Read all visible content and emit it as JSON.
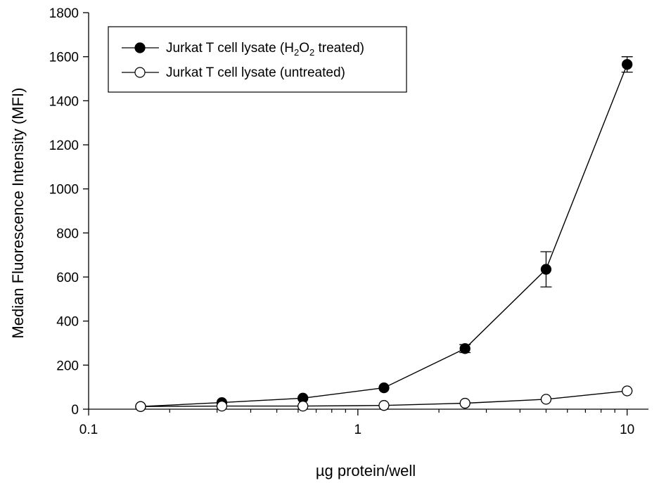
{
  "chart_data": {
    "type": "scatter",
    "xlabel": "µg protein/well",
    "ylabel": "Median Fluorescence Intensity (MFI)",
    "xscale": "log",
    "xlim": [
      0.1,
      12
    ],
    "ylim": [
      0,
      1800
    ],
    "xticks": [
      0.1,
      1,
      10
    ],
    "xtick_labels": [
      "0.1",
      "1",
      "10"
    ],
    "yticks": [
      0,
      200,
      400,
      600,
      800,
      1000,
      1200,
      1400,
      1600,
      1800
    ],
    "ytick_labels": [
      "0",
      "200",
      "400",
      "600",
      "800",
      "1000",
      "1200",
      "1400",
      "1600",
      "1800"
    ],
    "legend_position": "top-left",
    "grid": false,
    "series": [
      {
        "name": "Jurkat T cell lysate (H2O2 treated)",
        "legend_label": {
          "prefix": "Jurkat T cell lysate (H",
          "sub1": "2",
          "mid": "O",
          "sub2": "2",
          "suffix": " treated)"
        },
        "marker": "filled-circle",
        "color": "#000000",
        "x": [
          0.156,
          0.3125,
          0.625,
          1.25,
          2.5,
          5,
          10
        ],
        "y": [
          12,
          30,
          50,
          97,
          275,
          635,
          1565
        ],
        "err": [
          0,
          0,
          0,
          0,
          18,
          80,
          35
        ]
      },
      {
        "name": "Jurkat T cell lysate (untreated)",
        "legend_label": {
          "prefix": "Jurkat T cell lysate (untreated)",
          "sub1": "",
          "mid": "",
          "sub2": "",
          "suffix": ""
        },
        "marker": "open-circle",
        "color": "#000000",
        "x": [
          0.156,
          0.3125,
          0.625,
          1.25,
          2.5,
          5,
          10
        ],
        "y": [
          12,
          14,
          14,
          17,
          27,
          45,
          83
        ],
        "err": [
          0,
          0,
          0,
          0,
          0,
          0,
          0
        ]
      }
    ]
  }
}
